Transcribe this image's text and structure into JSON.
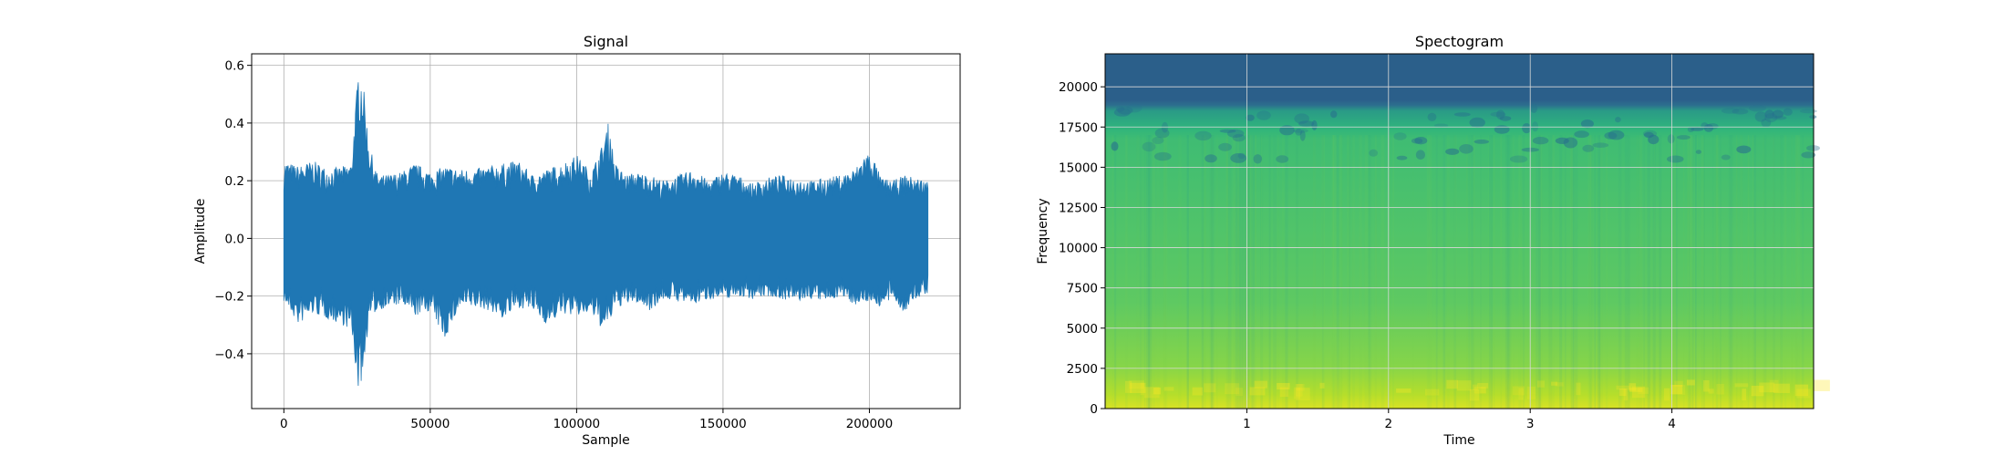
{
  "chart_data": [
    {
      "type": "line",
      "title": "Signal",
      "xlabel": "Sample",
      "ylabel": "Amplitude",
      "grid": true,
      "color": "#1f77b4",
      "xlim": [
        -11000,
        231000
      ],
      "ylim": [
        -0.59,
        0.64
      ],
      "xticks": [
        0,
        50000,
        100000,
        150000,
        200000
      ],
      "xtick_labels": [
        "0",
        "50000",
        "100000",
        "150000",
        "200000"
      ],
      "yticks": [
        -0.4,
        -0.2,
        0.0,
        0.2,
        0.4,
        0.6
      ],
      "ytick_labels": [
        "−0.4",
        "−0.2",
        "0.0",
        "0.2",
        "0.4",
        "0.6"
      ],
      "series": [
        {
          "x": [
            0,
            5000,
            10000,
            15000,
            20000,
            23000,
            25500,
            27000,
            29000,
            32000,
            35000,
            40000,
            45000,
            50000,
            55000,
            60000,
            65000,
            70000,
            75000,
            80000,
            85000,
            90000,
            95000,
            100000,
            105000,
            109000,
            111000,
            113000,
            117000,
            120000,
            125000,
            130000,
            135000,
            140000,
            145000,
            150000,
            155000,
            160000,
            165000,
            170000,
            175000,
            180000,
            185000,
            190000,
            195000,
            199000,
            201000,
            204000,
            208000,
            212000,
            216000,
            220000
          ],
          "upper": [
            0.27,
            0.25,
            0.27,
            0.24,
            0.25,
            0.26,
            0.59,
            0.55,
            0.33,
            0.22,
            0.22,
            0.23,
            0.26,
            0.23,
            0.25,
            0.24,
            0.24,
            0.25,
            0.26,
            0.27,
            0.22,
            0.24,
            0.26,
            0.29,
            0.23,
            0.33,
            0.41,
            0.26,
            0.22,
            0.23,
            0.22,
            0.2,
            0.22,
            0.24,
            0.2,
            0.23,
            0.22,
            0.19,
            0.21,
            0.22,
            0.21,
            0.2,
            0.21,
            0.22,
            0.24,
            0.3,
            0.29,
            0.21,
            0.2,
            0.22,
            0.21,
            0.2
          ],
          "lower": [
            -0.22,
            -0.3,
            -0.26,
            -0.28,
            -0.3,
            -0.32,
            -0.53,
            -0.48,
            -0.28,
            -0.25,
            -0.24,
            -0.23,
            -0.27,
            -0.25,
            -0.35,
            -0.24,
            -0.24,
            -0.25,
            -0.28,
            -0.24,
            -0.25,
            -0.3,
            -0.26,
            -0.27,
            -0.26,
            -0.32,
            -0.3,
            -0.24,
            -0.23,
            -0.22,
            -0.25,
            -0.21,
            -0.22,
            -0.23,
            -0.21,
            -0.21,
            -0.2,
            -0.21,
            -0.2,
            -0.21,
            -0.22,
            -0.21,
            -0.22,
            -0.2,
            -0.23,
            -0.22,
            -0.22,
            -0.24,
            -0.21,
            -0.26,
            -0.21,
            -0.19
          ]
        }
      ]
    },
    {
      "type": "heatmap",
      "title": "Spectogram",
      "xlabel": "Time",
      "ylabel": "Frequency",
      "grid": true,
      "colormap": "viridis",
      "xlim": [
        0,
        5.0
      ],
      "ylim": [
        0,
        22050
      ],
      "xticks": [
        1,
        2,
        3,
        4
      ],
      "xtick_labels": [
        "1",
        "2",
        "3",
        "4"
      ],
      "yticks": [
        0,
        2500,
        5000,
        7500,
        10000,
        12500,
        15000,
        17500,
        20000
      ],
      "ytick_labels": [
        "0",
        "2500",
        "5000",
        "7500",
        "10000",
        "12500",
        "15000",
        "17500",
        "20000"
      ],
      "colors": {
        "high_freq_band": "#2b5f8a",
        "band_edge": "#3bb37a",
        "mid": "#4cbb6a",
        "low": "#c8df2a"
      }
    }
  ]
}
